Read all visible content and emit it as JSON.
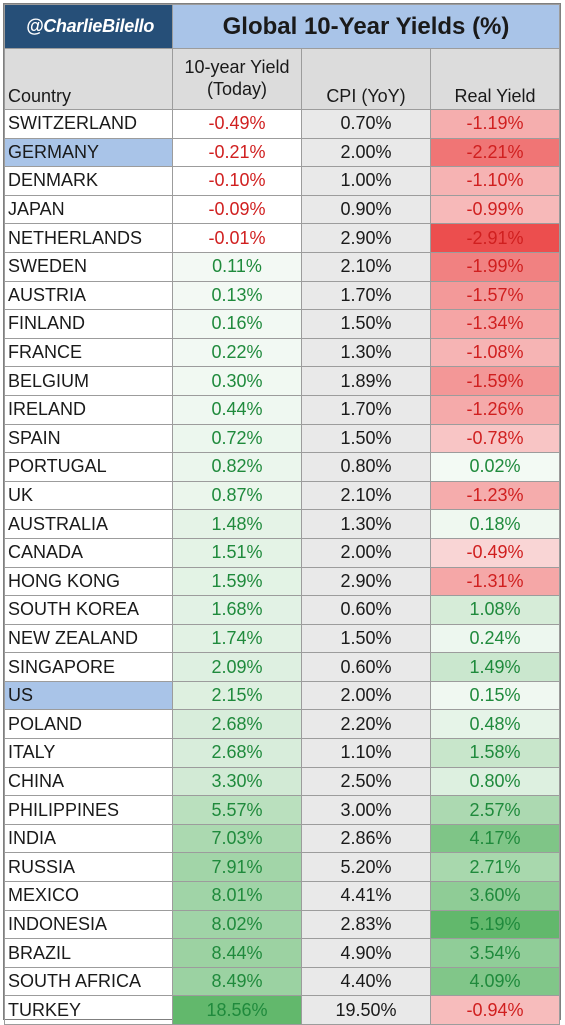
{
  "header": {
    "handle": "@CharlieBilello",
    "title": "Global 10-Year Yields (%)"
  },
  "columns": {
    "country": "Country",
    "yield_line1": "10-year Yield",
    "yield_line2": "(Today)",
    "cpi": "CPI (YoY)",
    "real": "Real Yield"
  },
  "colors": {
    "positive_text": "#1f8a3c",
    "negative_text": "#d01f1f",
    "highlight": "#a9c4e8",
    "handle_bg": "#264f78"
  },
  "chart_data": {
    "type": "table",
    "title": "Global 10-Year Yields (%)",
    "columns": [
      "Country",
      "10-year Yield (Today)",
      "CPI (YoY)",
      "Real Yield"
    ],
    "highlighted_rows": [
      "GERMANY",
      "US"
    ],
    "rows": [
      {
        "country": "SWITZERLAND",
        "yield": "-0.49%",
        "cpi": "0.70%",
        "real": "-1.19%"
      },
      {
        "country": "GERMANY",
        "yield": "-0.21%",
        "cpi": "2.00%",
        "real": "-2.21%"
      },
      {
        "country": "DENMARK",
        "yield": "-0.10%",
        "cpi": "1.00%",
        "real": "-1.10%"
      },
      {
        "country": "JAPAN",
        "yield": "-0.09%",
        "cpi": "0.90%",
        "real": "-0.99%"
      },
      {
        "country": "NETHERLANDS",
        "yield": "-0.01%",
        "cpi": "2.90%",
        "real": "-2.91%"
      },
      {
        "country": "SWEDEN",
        "yield": "0.11%",
        "cpi": "2.10%",
        "real": "-1.99%"
      },
      {
        "country": "AUSTRIA",
        "yield": "0.13%",
        "cpi": "1.70%",
        "real": "-1.57%"
      },
      {
        "country": "FINLAND",
        "yield": "0.16%",
        "cpi": "1.50%",
        "real": "-1.34%"
      },
      {
        "country": "FRANCE",
        "yield": "0.22%",
        "cpi": "1.30%",
        "real": "-1.08%"
      },
      {
        "country": "BELGIUM",
        "yield": "0.30%",
        "cpi": "1.89%",
        "real": "-1.59%"
      },
      {
        "country": "IRELAND",
        "yield": "0.44%",
        "cpi": "1.70%",
        "real": "-1.26%"
      },
      {
        "country": "SPAIN",
        "yield": "0.72%",
        "cpi": "1.50%",
        "real": "-0.78%"
      },
      {
        "country": "PORTUGAL",
        "yield": "0.82%",
        "cpi": "0.80%",
        "real": "0.02%"
      },
      {
        "country": "UK",
        "yield": "0.87%",
        "cpi": "2.10%",
        "real": "-1.23%"
      },
      {
        "country": "AUSTRALIA",
        "yield": "1.48%",
        "cpi": "1.30%",
        "real": "0.18%"
      },
      {
        "country": "CANADA",
        "yield": "1.51%",
        "cpi": "2.00%",
        "real": "-0.49%"
      },
      {
        "country": "HONG KONG",
        "yield": "1.59%",
        "cpi": "2.90%",
        "real": "-1.31%"
      },
      {
        "country": "SOUTH KOREA",
        "yield": "1.68%",
        "cpi": "0.60%",
        "real": "1.08%"
      },
      {
        "country": "NEW ZEALAND",
        "yield": "1.74%",
        "cpi": "1.50%",
        "real": "0.24%"
      },
      {
        "country": "SINGAPORE",
        "yield": "2.09%",
        "cpi": "0.60%",
        "real": "1.49%"
      },
      {
        "country": "US",
        "yield": "2.15%",
        "cpi": "2.00%",
        "real": "0.15%"
      },
      {
        "country": "POLAND",
        "yield": "2.68%",
        "cpi": "2.20%",
        "real": "0.48%"
      },
      {
        "country": "ITALY",
        "yield": "2.68%",
        "cpi": "1.10%",
        "real": "1.58%"
      },
      {
        "country": "CHINA",
        "yield": "3.30%",
        "cpi": "2.50%",
        "real": "0.80%"
      },
      {
        "country": "PHILIPPINES",
        "yield": "5.57%",
        "cpi": "3.00%",
        "real": "2.57%"
      },
      {
        "country": "INDIA",
        "yield": "7.03%",
        "cpi": "2.86%",
        "real": "4.17%"
      },
      {
        "country": "RUSSIA",
        "yield": "7.91%",
        "cpi": "5.20%",
        "real": "2.71%"
      },
      {
        "country": "MEXICO",
        "yield": "8.01%",
        "cpi": "4.41%",
        "real": "3.60%"
      },
      {
        "country": "INDONESIA",
        "yield": "8.02%",
        "cpi": "2.83%",
        "real": "5.19%"
      },
      {
        "country": "BRAZIL",
        "yield": "8.44%",
        "cpi": "4.90%",
        "real": "3.54%"
      },
      {
        "country": "SOUTH AFRICA",
        "yield": "8.49%",
        "cpi": "4.40%",
        "real": "4.09%"
      },
      {
        "country": "TURKEY",
        "yield": "18.56%",
        "cpi": "19.50%",
        "real": "-0.94%"
      }
    ]
  }
}
